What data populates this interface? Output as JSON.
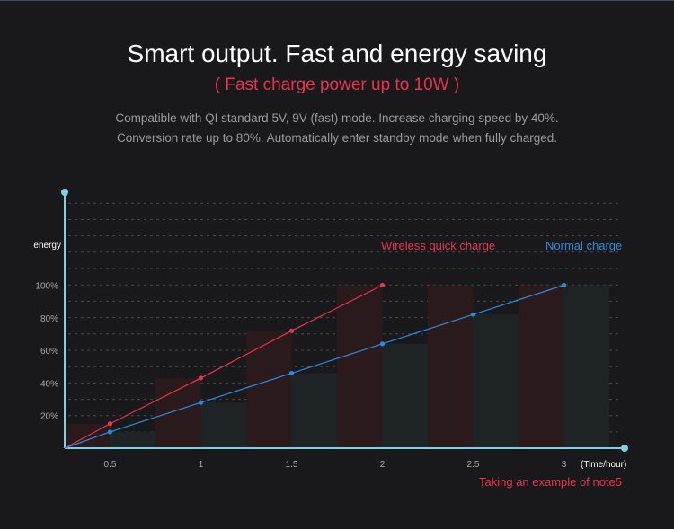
{
  "header": {
    "title": "Smart output. Fast and energy saving",
    "subtitle": "( Fast charge power up to 10W )",
    "description_line1": "Compatible with  QI standard 5V, 9V (fast) mode. Increase charging speed by  40%.",
    "description_line2": "Conversion rate up to 80%. Automatically enter standby mode when fully charged."
  },
  "chart_data": {
    "type": "line",
    "ylabel": "energy",
    "xlabel": "(Time/hour)",
    "x": [
      0.5,
      1,
      1.5,
      2,
      2.5,
      3
    ],
    "xticks": [
      "0.5",
      "1",
      "1.5",
      "2",
      "2.5",
      "3"
    ],
    "yticks": [
      "20%",
      "40%",
      "60%",
      "80%",
      "100%"
    ],
    "ylim": [
      0,
      100
    ],
    "xlim": [
      0.25,
      3.25
    ],
    "grid": true,
    "series": [
      {
        "name": "Wireless quick charge",
        "color": "#e8344e",
        "x": [
          0.5,
          1,
          1.5,
          2
        ],
        "values": [
          15,
          43,
          72,
          100
        ]
      },
      {
        "name": "Normal charge",
        "color": "#2a8be0",
        "x": [
          0.5,
          1,
          1.5,
          2,
          2.5,
          3
        ],
        "values": [
          10,
          28,
          46,
          64,
          82,
          100
        ]
      }
    ],
    "note": "Taking an example of note5",
    "axis_color": "#7fd0e0"
  }
}
